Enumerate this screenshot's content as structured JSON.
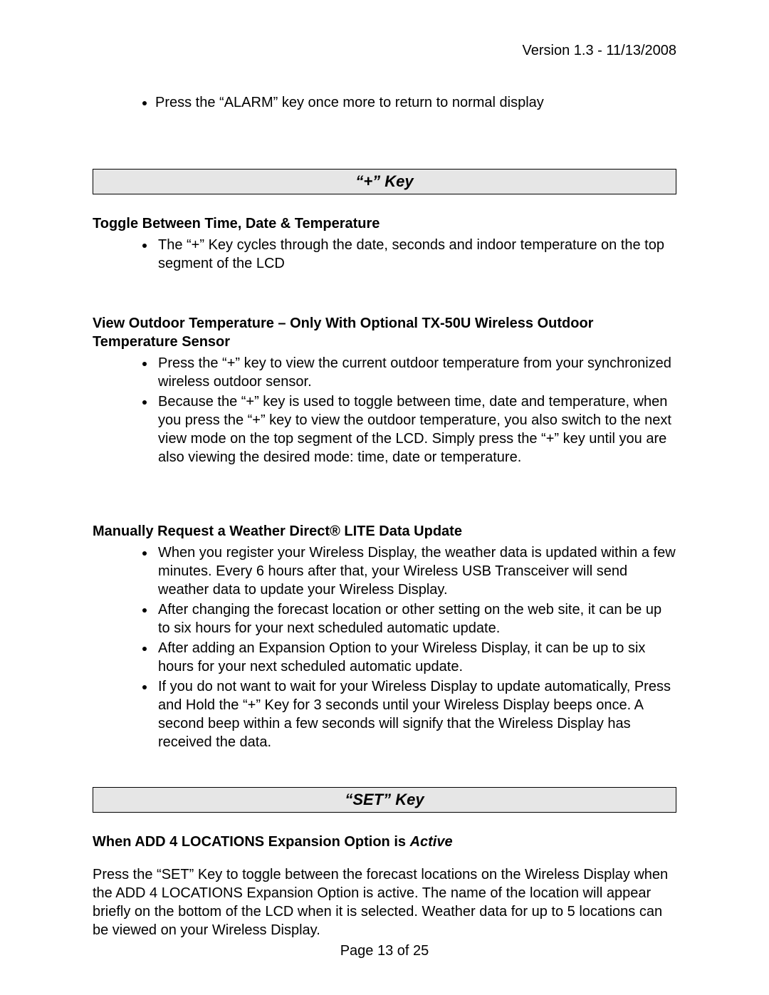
{
  "meta": {
    "version_line": "Version 1.3 - 11/13/2008",
    "footer": "Page 13 of 25"
  },
  "top_bullet": "Press the “ALARM” key once more to return to normal display",
  "plus_key": {
    "header": "“+” Key",
    "toggle": {
      "heading": "Toggle Between Time, Date & Temperature",
      "items": [
        "The “+” Key cycles through the date, seconds and indoor temperature on the top segment of the LCD"
      ]
    },
    "outdoor": {
      "heading": "View Outdoor Temperature – Only With Optional TX-50U Wireless Outdoor Temperature Sensor",
      "items": [
        "Press the “+” key to view the current outdoor temperature from your synchronized wireless outdoor sensor.",
        "Because the “+” key is used to toggle between time, date and temperature, when you press the “+” key to view the outdoor temperature, you also switch to the next view mode on the top segment of the LCD.  Simply press the “+” key until you are also viewing the desired mode: time, date or temperature."
      ]
    },
    "manual": {
      "heading": "Manually Request a Weather Direct® LITE Data Update",
      "items": [
        "When you register your Wireless Display, the weather data is updated within a few minutes. Every 6 hours after that, your Wireless USB Transceiver will send weather data to update your Wireless Display.",
        "After changing the forecast location or other setting on the web site, it can be up to six hours for your next scheduled automatic update.",
        "After adding an Expansion Option to your Wireless Display, it can be up to six hours for your next scheduled automatic update.",
        "If you do not want to wait for your Wireless Display to update automatically, Press and Hold the “+” Key for 3 seconds until your Wireless Display beeps once. A second beep within a few seconds will signify that the Wireless Display has received the data."
      ]
    }
  },
  "set_key": {
    "header": "“SET” Key",
    "active": {
      "heading_prefix": "When ADD 4 LOCATIONS Expansion Option is ",
      "heading_italic": "Active",
      "paragraph": "Press the “SET” Key to toggle between the forecast locations on the Wireless Display when the ADD 4 LOCATIONS Expansion Option is active. The name of the location will appear briefly on the bottom of the LCD when it is selected. Weather data for up to 5 locations can be viewed on your Wireless Display."
    }
  }
}
